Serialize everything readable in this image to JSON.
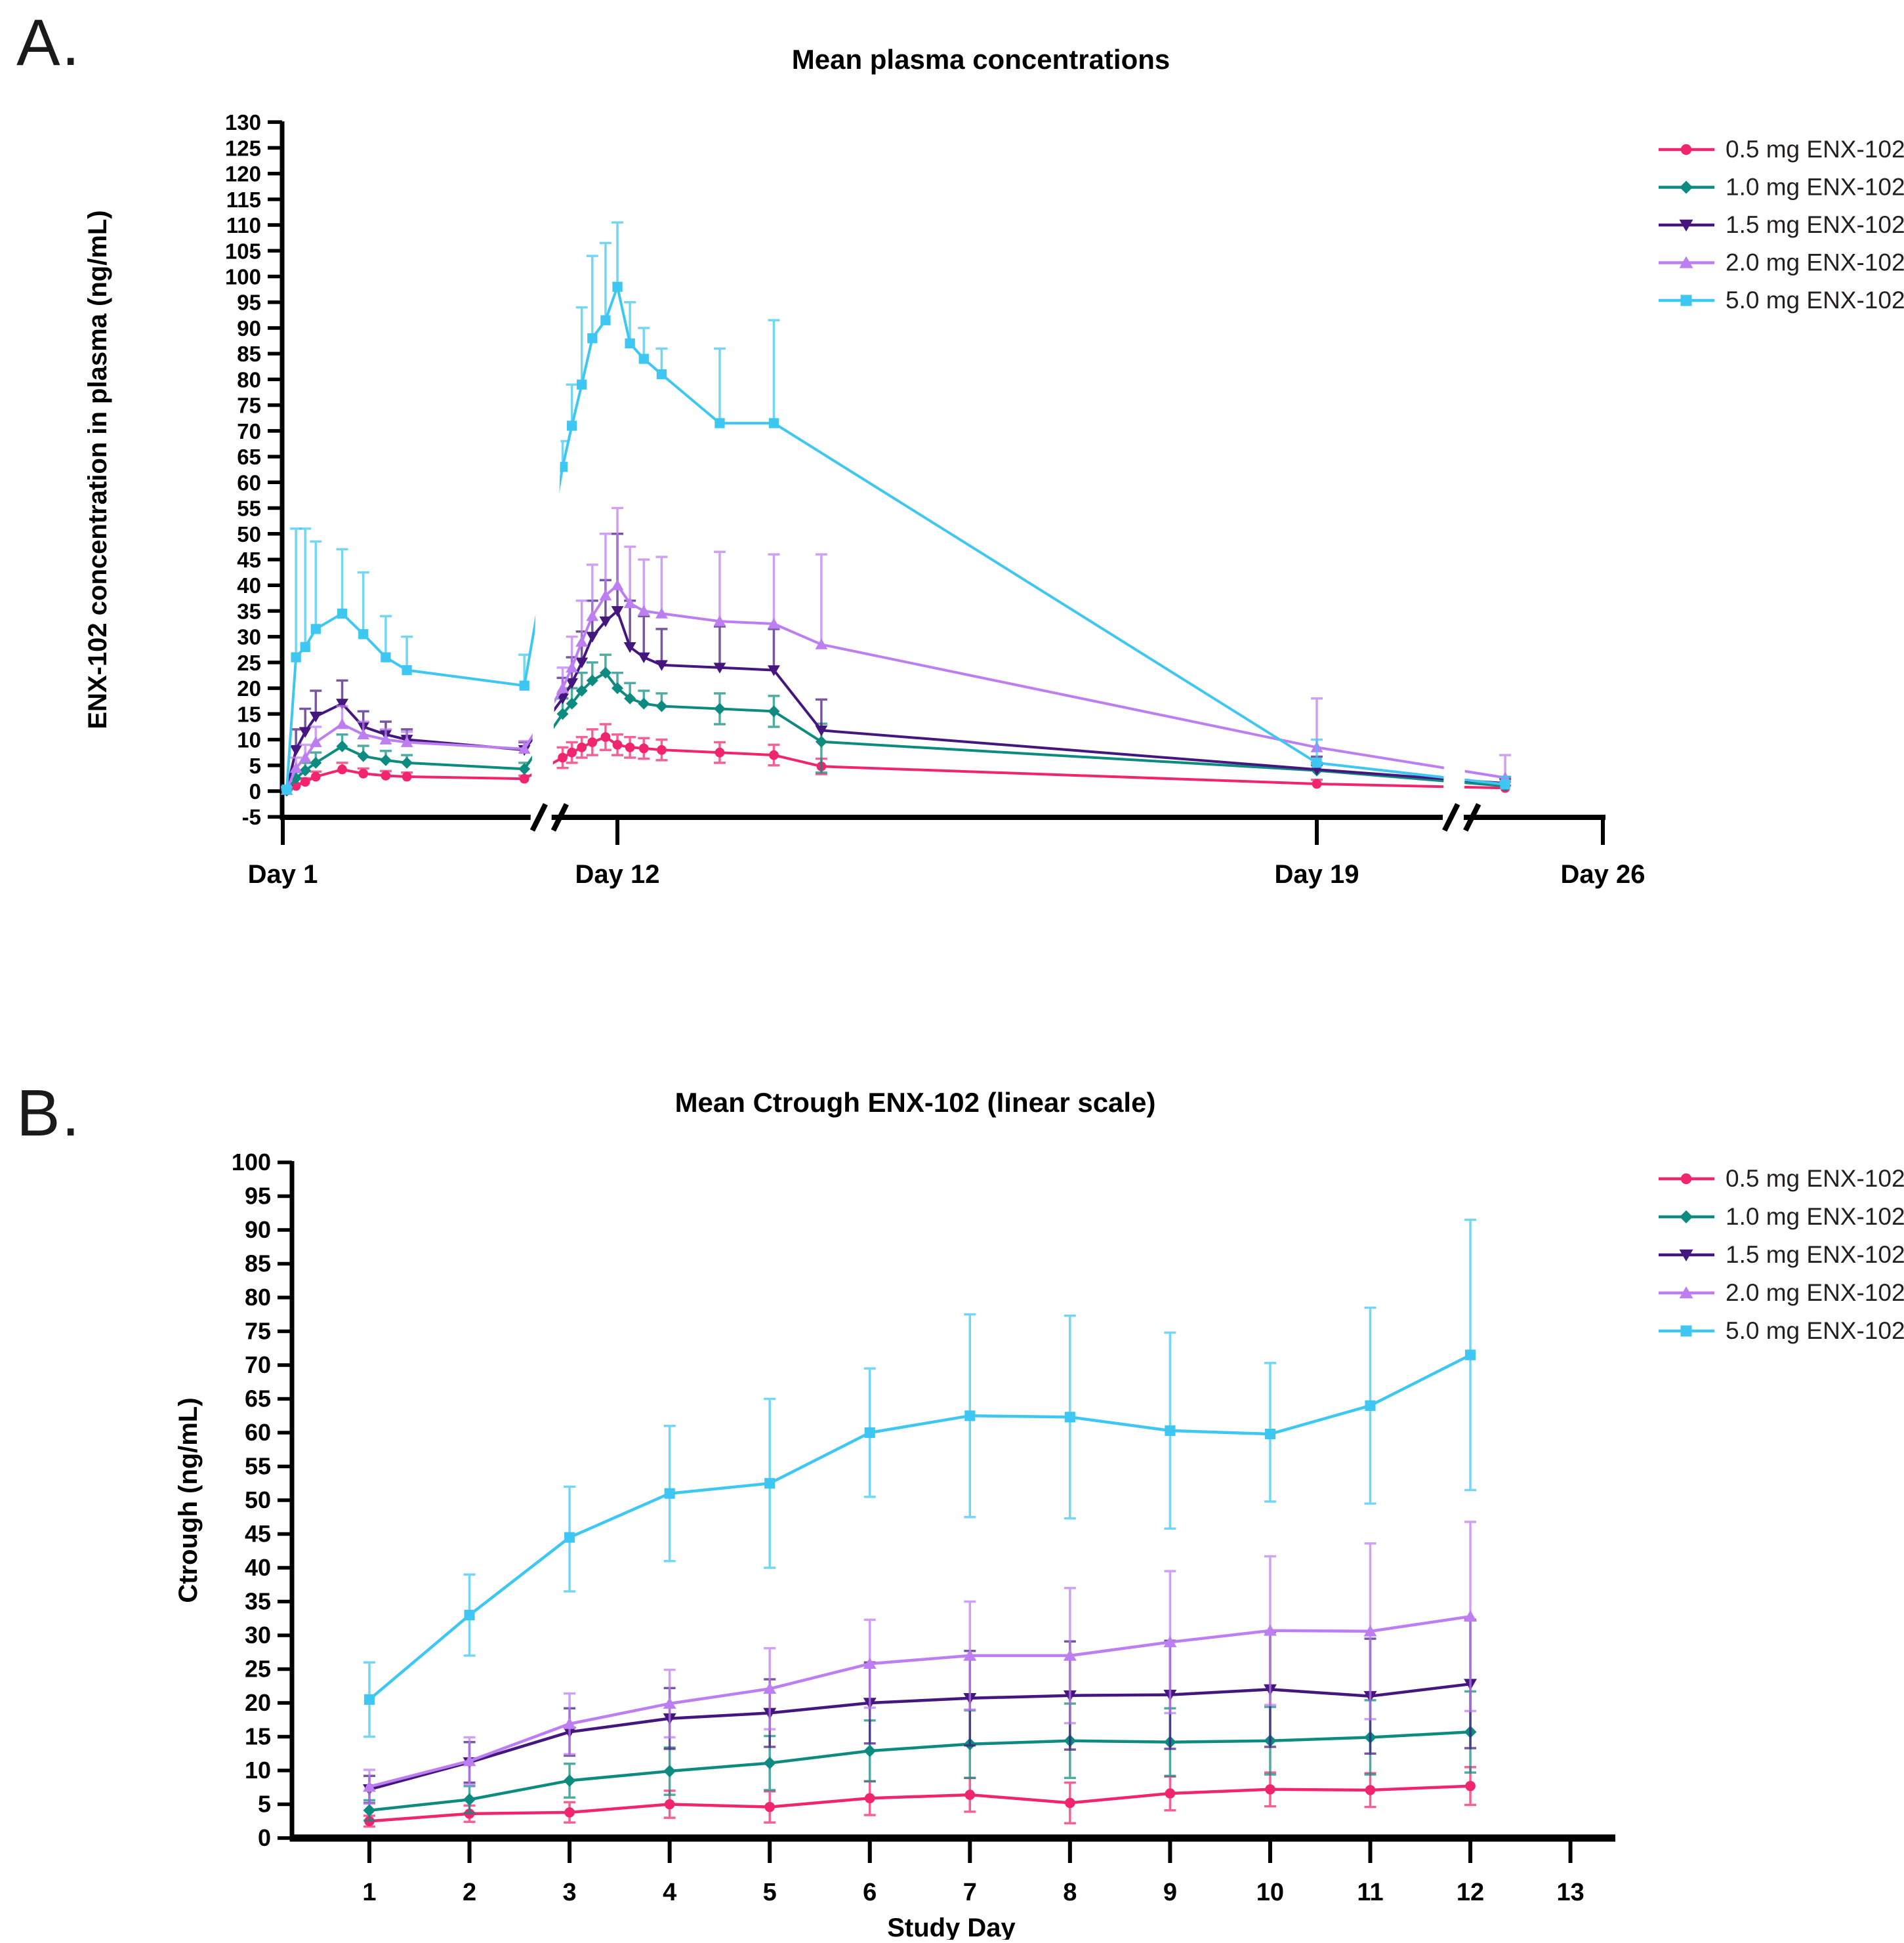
{
  "figure": {
    "background": "#ffffff",
    "text_color": "#000000"
  },
  "chart_data": [
    {
      "id": "panel-a",
      "type": "line",
      "panel_label": "A.",
      "title": "Mean plasma concentrations",
      "ylabel": "ENX-102 concentration in plasma (ng/mL)",
      "ylim": [
        -5,
        130
      ],
      "ytick_step": 5,
      "grid": false,
      "legend_position": "right-top",
      "x_axis": {
        "style": "broken",
        "ticks": [
          {
            "label": "Day 1",
            "pos": 0.0
          },
          {
            "label": "Day 12",
            "pos": 0.2535
          },
          {
            "label": "Day 19",
            "pos": 0.7833
          },
          {
            "label": "Day 26",
            "pos": 1.0
          }
        ],
        "breaks": [
          0.202,
          0.893
        ]
      },
      "series": [
        {
          "name": "0.5 mg ENX-102",
          "color": "#F0256E",
          "marker": "circle",
          "points": [
            [
              0.003,
              0.1,
              0.3,
              0
            ],
            [
              0.01,
              1.0,
              0.5,
              0
            ],
            [
              0.017,
              1.8,
              0.7,
              0
            ],
            [
              0.025,
              2.8,
              1.0,
              0
            ],
            [
              0.045,
              4.2,
              1.3,
              0
            ],
            [
              0.061,
              3.4,
              1.0,
              0
            ],
            [
              0.078,
              3.0,
              0.9,
              0
            ],
            [
              0.094,
              2.8,
              0.8,
              0
            ],
            [
              0.183,
              2.4,
              0.6,
              0
            ],
            [
              0.212,
              6.5,
              2,
              2
            ],
            [
              0.219,
              7.5,
              2,
              2
            ],
            [
              0.2265,
              8.5,
              2,
              2
            ],
            [
              0.2345,
              9.5,
              2.5,
              2.5
            ],
            [
              0.2445,
              10.5,
              2.5,
              2.5
            ],
            [
              0.2535,
              9.0,
              2,
              2
            ],
            [
              0.263,
              8.5,
              2,
              2
            ],
            [
              0.2735,
              8.3,
              2,
              2
            ],
            [
              0.287,
              8.0,
              2,
              2
            ],
            [
              0.331,
              7.5,
              2,
              2
            ],
            [
              0.372,
              7.0,
              2,
              2
            ],
            [
              0.408,
              4.8,
              1.5,
              1.5
            ],
            [
              0.7833,
              1.4,
              0.8,
              0
            ],
            [
              0.926,
              0.6,
              0.5,
              0
            ]
          ]
        },
        {
          "name": "1.0 mg ENX-102",
          "color": "#0E8B80",
          "marker": "diamond",
          "points": [
            [
              0.003,
              0.1,
              0.3,
              0
            ],
            [
              0.01,
              2.5,
              1.2,
              0
            ],
            [
              0.017,
              4.0,
              1.5,
              0
            ],
            [
              0.025,
              5.5,
              2,
              0
            ],
            [
              0.045,
              8.7,
              2.3,
              0
            ],
            [
              0.061,
              6.8,
              2,
              0
            ],
            [
              0.078,
              6.0,
              1.8,
              0
            ],
            [
              0.094,
              5.5,
              1.5,
              0
            ],
            [
              0.183,
              4.3,
              1.2,
              0
            ],
            [
              0.212,
              15,
              3,
              0
            ],
            [
              0.219,
              17,
              3,
              0
            ],
            [
              0.2265,
              19.5,
              3.5,
              0
            ],
            [
              0.2345,
              21.5,
              3.5,
              0
            ],
            [
              0.2445,
              23,
              3.5,
              0
            ],
            [
              0.2535,
              20,
              3,
              0
            ],
            [
              0.263,
              18,
              3,
              0
            ],
            [
              0.2735,
              17,
              2.5,
              0
            ],
            [
              0.287,
              16.5,
              2.5,
              0
            ],
            [
              0.331,
              16,
              3,
              3
            ],
            [
              0.372,
              15.5,
              3,
              3
            ],
            [
              0.408,
              9.6,
              3.5,
              6
            ],
            [
              0.7833,
              4.0,
              1.5,
              0
            ],
            [
              0.926,
              1.0,
              0.8,
              0
            ]
          ]
        },
        {
          "name": "1.5 mg ENX-102",
          "color": "#45177E",
          "marker": "triangle-down",
          "points": [
            [
              0.003,
              0.2,
              0.5,
              0
            ],
            [
              0.01,
              8,
              4,
              0
            ],
            [
              0.017,
              11.5,
              4.5,
              0
            ],
            [
              0.025,
              14.5,
              5,
              0
            ],
            [
              0.045,
              17,
              4.5,
              0
            ],
            [
              0.061,
              12.5,
              3,
              0
            ],
            [
              0.078,
              11,
              2.5,
              0
            ],
            [
              0.094,
              10,
              2,
              0
            ],
            [
              0.183,
              8.0,
              1.5,
              0
            ],
            [
              0.212,
              18,
              4,
              0
            ],
            [
              0.219,
              21,
              5,
              0
            ],
            [
              0.2265,
              25,
              6,
              0
            ],
            [
              0.2345,
              30,
              7,
              0
            ],
            [
              0.2445,
              33,
              8,
              0
            ],
            [
              0.2535,
              35,
              15,
              0
            ],
            [
              0.263,
              28,
              9,
              0
            ],
            [
              0.2735,
              26,
              8,
              0
            ],
            [
              0.287,
              24.5,
              7,
              0
            ],
            [
              0.331,
              24,
              8,
              0
            ],
            [
              0.372,
              23.5,
              8,
              0
            ],
            [
              0.408,
              11.8,
              6,
              0
            ],
            [
              0.7833,
              4.2,
              2.5,
              0
            ],
            [
              0.926,
              1.5,
              1.2,
              0
            ]
          ]
        },
        {
          "name": "2.0 mg ENX-102",
          "color": "#BC7EF0",
          "marker": "triangle-up",
          "points": [
            [
              0.003,
              0.2,
              0.5,
              0
            ],
            [
              0.01,
              4.5,
              2,
              0
            ],
            [
              0.017,
              6.5,
              2.5,
              0
            ],
            [
              0.025,
              9.5,
              3,
              0
            ],
            [
              0.045,
              13,
              3.5,
              0
            ],
            [
              0.061,
              11,
              2.5,
              0
            ],
            [
              0.078,
              10,
              2,
              0
            ],
            [
              0.094,
              9.5,
              2,
              0
            ],
            [
              0.183,
              8.2,
              1.5,
              0
            ],
            [
              0.212,
              20,
              4,
              0
            ],
            [
              0.219,
              24,
              6,
              0
            ],
            [
              0.2265,
              29,
              8,
              0
            ],
            [
              0.2345,
              34,
              10,
              0
            ],
            [
              0.2445,
              38,
              12,
              0
            ],
            [
              0.2535,
              40,
              15,
              0
            ],
            [
              0.263,
              36.5,
              11,
              0
            ],
            [
              0.2735,
              35,
              10,
              0
            ],
            [
              0.287,
              34.5,
              11,
              0
            ],
            [
              0.331,
              33,
              13.5,
              0
            ],
            [
              0.372,
              32.5,
              13.5,
              0
            ],
            [
              0.408,
              28.5,
              17.5,
              0
            ],
            [
              0.7833,
              8.5,
              9.5,
              0
            ],
            [
              0.926,
              2.6,
              4.4,
              0
            ]
          ]
        },
        {
          "name": "5.0 mg ENX-102",
          "color": "#3EC7F2",
          "marker": "square",
          "points": [
            [
              0.003,
              0.3,
              0.5,
              0
            ],
            [
              0.01,
              26,
              25,
              0
            ],
            [
              0.017,
              28,
              23,
              0
            ],
            [
              0.025,
              31.5,
              17,
              0
            ],
            [
              0.045,
              34.5,
              12.5,
              0
            ],
            [
              0.061,
              30.5,
              12,
              0
            ],
            [
              0.078,
              26,
              8,
              0
            ],
            [
              0.094,
              23.5,
              6.5,
              0
            ],
            [
              0.183,
              20.5,
              6,
              0
            ],
            [
              0.212,
              63,
              5,
              0
            ],
            [
              0.219,
              71,
              8,
              0
            ],
            [
              0.2265,
              79,
              15,
              0
            ],
            [
              0.2345,
              88,
              16,
              0
            ],
            [
              0.2445,
              91.5,
              15,
              0
            ],
            [
              0.2535,
              98,
              12.5,
              0
            ],
            [
              0.263,
              87,
              8,
              0
            ],
            [
              0.2735,
              84,
              6,
              0
            ],
            [
              0.287,
              81,
              5,
              0
            ],
            [
              0.331,
              71.5,
              14.5,
              0
            ],
            [
              0.372,
              71.5,
              20,
              0
            ],
            [
              0.7833,
              5.5,
              4.5,
              0
            ],
            [
              0.926,
              1.3,
              1.5,
              0
            ]
          ]
        }
      ]
    },
    {
      "id": "panel-b",
      "type": "line",
      "panel_label": "B.",
      "title": "Mean Ctrough ENX-102 (linear scale)",
      "xlabel": "Study Day",
      "ylabel": "Ctrough (ng/mL)",
      "ylim": [
        0,
        100
      ],
      "ytick_step": 5,
      "grid": false,
      "legend_position": "right-top",
      "x_axis": {
        "style": "linear",
        "tick_labels": [
          "1",
          "2",
          "3",
          "4",
          "5",
          "6",
          "7",
          "8",
          "9",
          "10",
          "11",
          "12",
          "13"
        ]
      },
      "series": [
        {
          "name": "0.5 mg ENX-102",
          "color": "#F0256E",
          "marker": "circle",
          "days": [
            1,
            2,
            3,
            4,
            5,
            6,
            7,
            8,
            9,
            10,
            11,
            12
          ],
          "values": [
            2.5,
            3.6,
            3.8,
            5.0,
            4.6,
            5.9,
            6.4,
            5.2,
            6.6,
            7.2,
            7.1,
            7.7
          ],
          "err_up": [
            0.8,
            1.2,
            1.5,
            2,
            2.3,
            2.5,
            2.5,
            3,
            2.5,
            2.5,
            2.5,
            2.8
          ],
          "err_down": [
            0.8,
            1.2,
            1.5,
            2,
            2.3,
            2.5,
            2.5,
            3,
            2.5,
            2.5,
            2.5,
            2.8
          ]
        },
        {
          "name": "1.0 mg ENX-102",
          "color": "#0E8B80",
          "marker": "diamond",
          "days": [
            1,
            2,
            3,
            4,
            5,
            6,
            7,
            8,
            9,
            10,
            11,
            12
          ],
          "values": [
            4.1,
            5.7,
            8.5,
            9.9,
            11.1,
            12.9,
            13.9,
            14.4,
            14.2,
            14.4,
            14.9,
            15.7
          ],
          "err_up": [
            1.5,
            2,
            2.5,
            3.5,
            4,
            4.5,
            5,
            5.5,
            5,
            5,
            5.5,
            6
          ],
          "err_down": [
            1.5,
            2,
            2.5,
            3.5,
            4,
            4.5,
            5,
            5.5,
            5,
            5,
            5.5,
            6
          ]
        },
        {
          "name": "1.5 mg ENX-102",
          "color": "#45177E",
          "marker": "triangle-down",
          "days": [
            1,
            2,
            3,
            4,
            5,
            6,
            7,
            8,
            9,
            10,
            11,
            12
          ],
          "values": [
            7.2,
            11.2,
            15.7,
            17.7,
            18.5,
            20,
            20.7,
            21.1,
            21.2,
            22,
            21,
            22.8
          ],
          "err_up": [
            2,
            3,
            3.5,
            4.5,
            5,
            6,
            7,
            8,
            8,
            8.5,
            8.5,
            9.5
          ],
          "err_down": [
            2,
            3,
            3.5,
            4.5,
            5,
            6,
            7,
            8,
            8,
            8.5,
            8.5,
            9.5
          ]
        },
        {
          "name": "2.0 mg ENX-102",
          "color": "#BC7EF0",
          "marker": "triangle-up",
          "days": [
            1,
            2,
            3,
            4,
            5,
            6,
            7,
            8,
            9,
            10,
            11,
            12
          ],
          "values": [
            7.6,
            11.4,
            16.9,
            19.9,
            22.1,
            25.8,
            27,
            27,
            29,
            30.7,
            30.6,
            32.8
          ],
          "err_up": [
            2.5,
            3.5,
            4.5,
            5,
            6,
            6.5,
            8,
            10,
            10.5,
            11,
            13,
            14
          ],
          "err_down": [
            2.5,
            3.5,
            4.5,
            5,
            6,
            6.5,
            8,
            10,
            10.5,
            11,
            13,
            14
          ]
        },
        {
          "name": "5.0 mg ENX-102",
          "color": "#3EC7F2",
          "marker": "square",
          "days": [
            1,
            2,
            3,
            4,
            5,
            6,
            7,
            8,
            9,
            10,
            11,
            12
          ],
          "values": [
            20.5,
            33,
            44.5,
            51,
            52.5,
            60,
            62.5,
            62.3,
            60.3,
            59.8,
            64,
            71.5
          ],
          "err_up": [
            5.5,
            6,
            7.5,
            10,
            12.5,
            9.5,
            15,
            15,
            14.5,
            10.5,
            14.5,
            20
          ],
          "err_down": [
            5.5,
            6,
            8,
            10,
            12.5,
            9.5,
            15,
            15,
            14.5,
            10,
            14.5,
            20
          ]
        }
      ]
    }
  ]
}
